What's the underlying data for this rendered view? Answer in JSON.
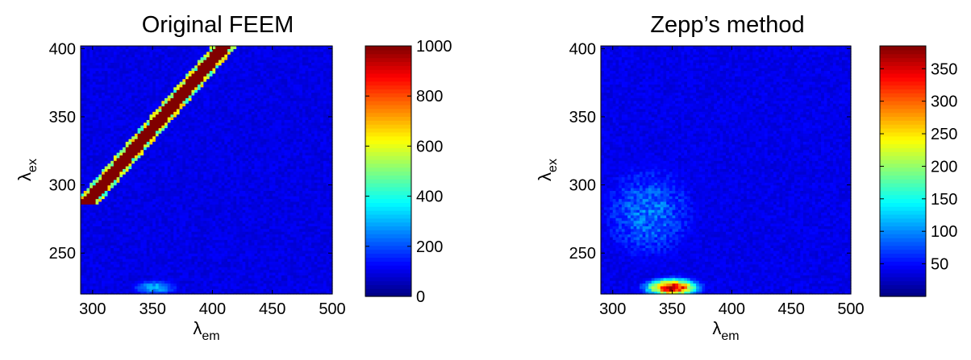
{
  "chart_data": [
    {
      "type": "heatmap",
      "title": "Original FEEM",
      "xlabel_symbol": "λ",
      "xlabel_sub": "em",
      "ylabel_symbol": "λ",
      "ylabel_sub": "ex",
      "xlim": [
        290,
        500
      ],
      "ylim": [
        220,
        402
      ],
      "xticks": [
        300,
        350,
        400,
        450,
        500
      ],
      "yticks": [
        250,
        300,
        350,
        400
      ],
      "colorbar": {
        "min": 0,
        "max": 1000,
        "ticks": [
          0,
          200,
          400,
          600,
          800,
          1000
        ]
      },
      "colormap": "jet",
      "background_level": 100,
      "features": [
        {
          "kind": "rayleigh_scatter_band",
          "em_equals_ex_plus": 8,
          "width_nm": 13,
          "ex_range": [
            286,
            402
          ],
          "peak": 1000
        },
        {
          "kind": "fluorescence_peak",
          "em": 352,
          "ex": 225,
          "peak": 300
        }
      ]
    },
    {
      "type": "heatmap",
      "title": "Zepp’s method",
      "xlabel_symbol": "λ",
      "xlabel_sub": "em",
      "ylabel_symbol": "λ",
      "ylabel_sub": "ex",
      "xlim": [
        290,
        500
      ],
      "ylim": [
        220,
        402
      ],
      "xticks": [
        300,
        350,
        400,
        450,
        500
      ],
      "yticks": [
        250,
        300,
        350,
        400
      ],
      "colorbar": {
        "min": 0,
        "max": 385,
        "ticks": [
          50,
          100,
          150,
          200,
          250,
          300,
          350
        ]
      },
      "colormap": "jet",
      "background_level": 40,
      "features": [
        {
          "kind": "fluorescence_peak",
          "em": 350,
          "ex": 225,
          "peak": 380
        },
        {
          "kind": "diffuse_region",
          "em": 330,
          "ex": 280,
          "peak": 90
        }
      ]
    }
  ],
  "colors": {
    "axis": "#000000",
    "background": "#ffffff"
  }
}
